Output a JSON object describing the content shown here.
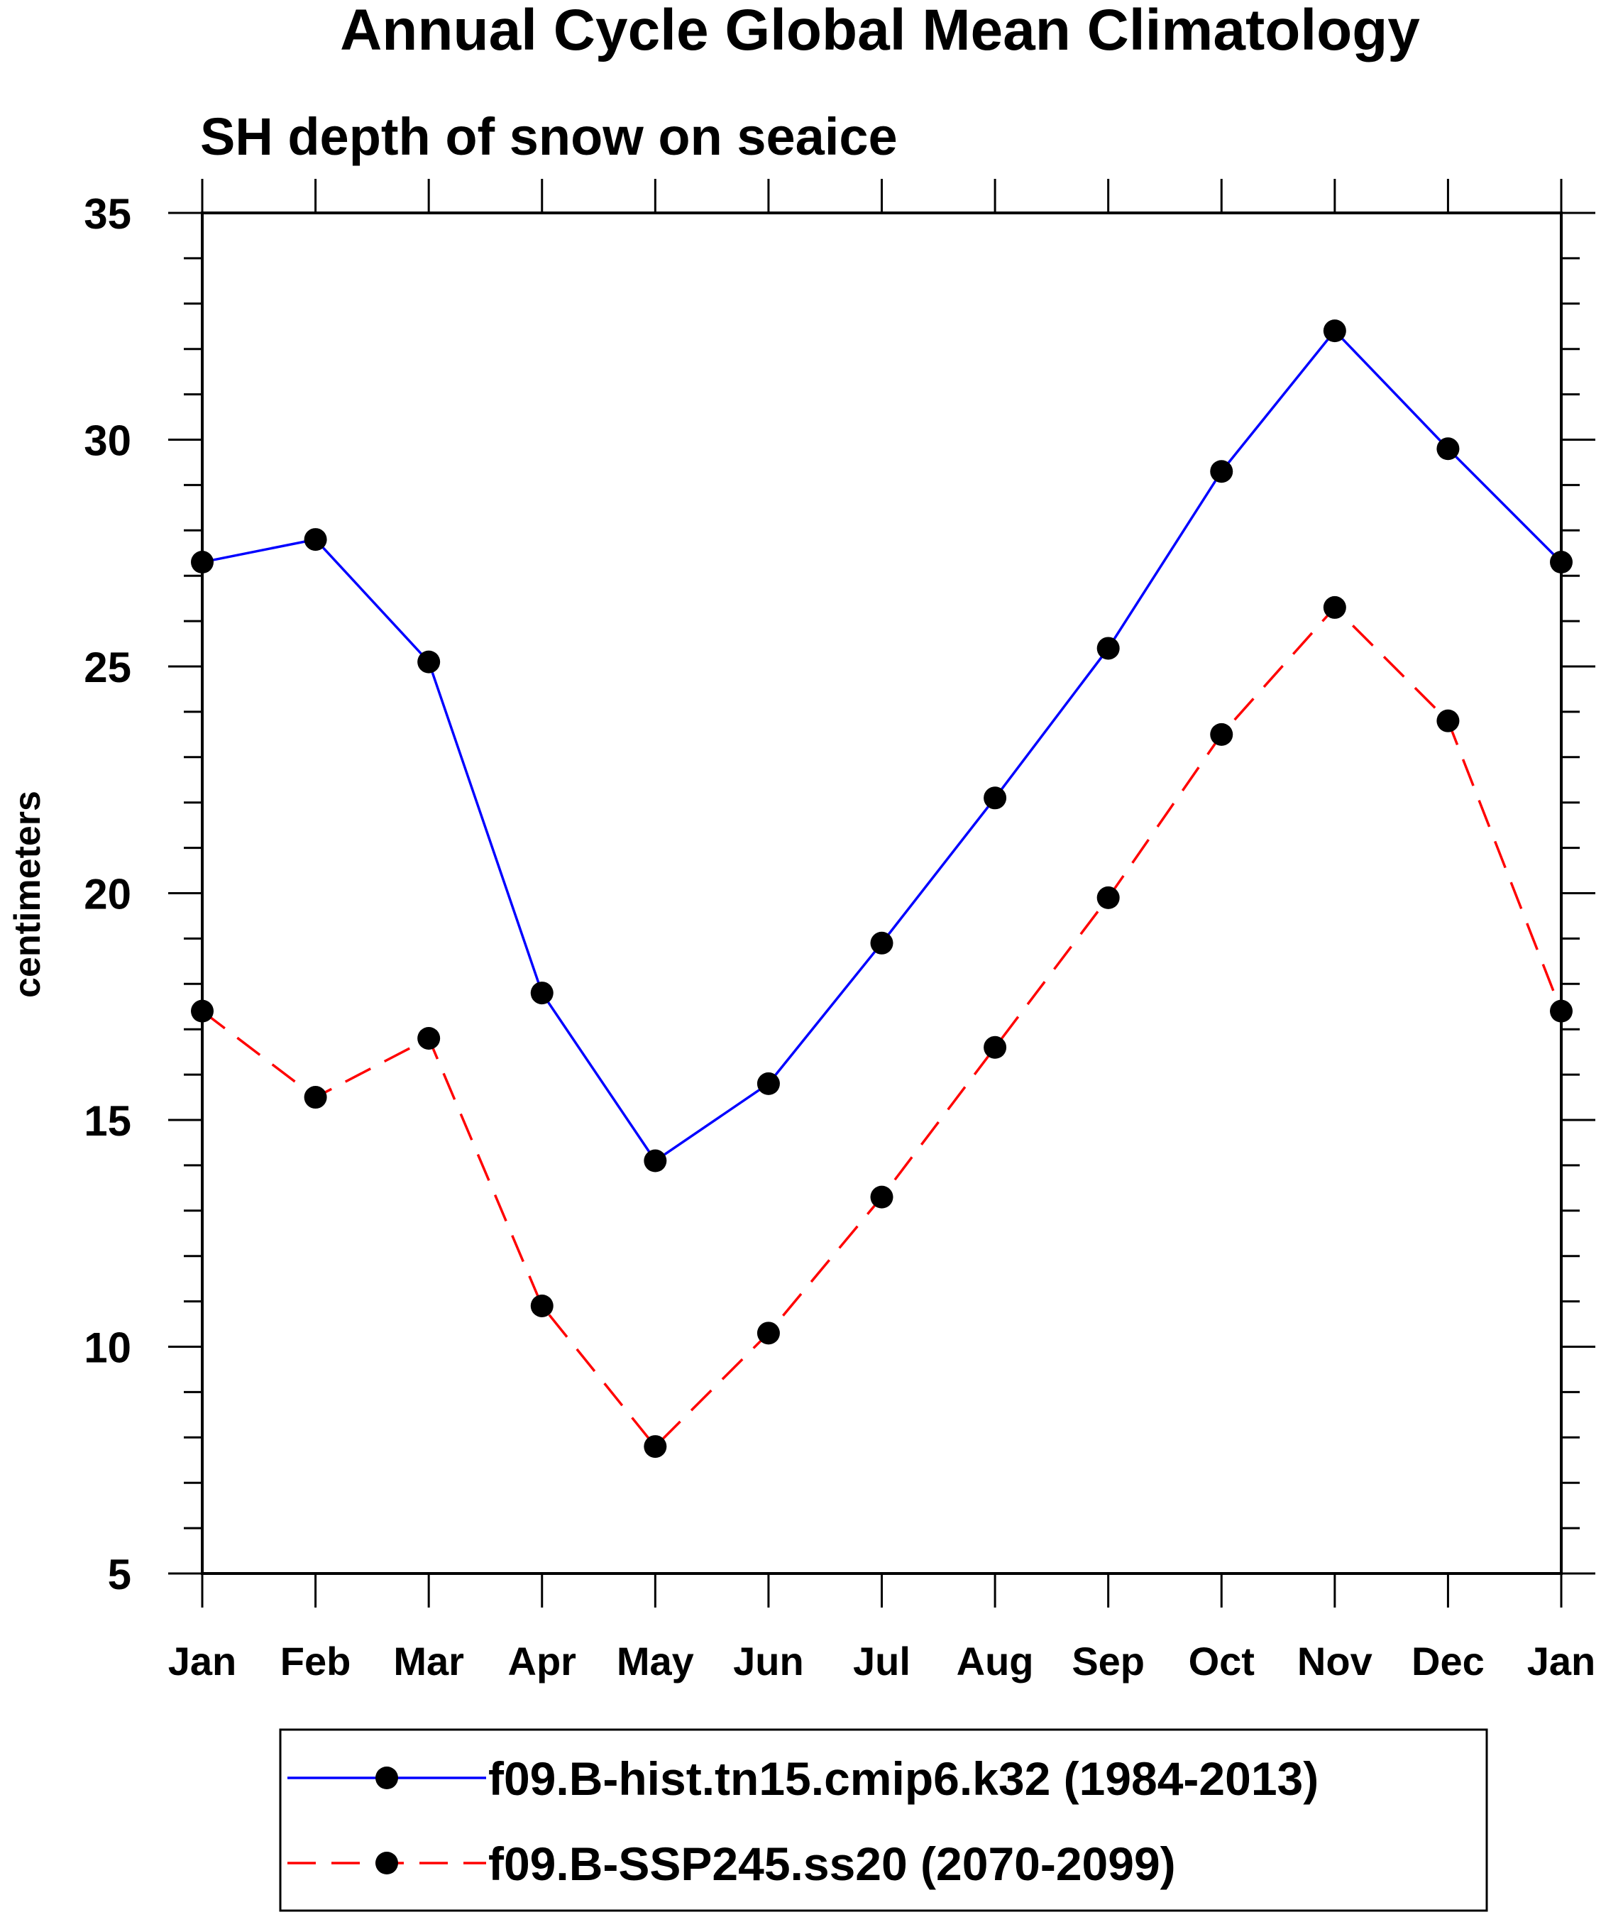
{
  "chart_data": {
    "type": "line",
    "title": "Annual Cycle Global Mean Climatology",
    "subtitle": "SH depth of snow on seaice",
    "xlabel": "",
    "ylabel": "centimeters",
    "categories": [
      "Jan",
      "Feb",
      "Mar",
      "Apr",
      "May",
      "Jun",
      "Jul",
      "Aug",
      "Sep",
      "Oct",
      "Nov",
      "Dec",
      "Jan"
    ],
    "ylim": [
      5,
      35
    ],
    "yticks": [
      5,
      10,
      15,
      20,
      25,
      30,
      35
    ],
    "grid": false,
    "legend_position": "bottom",
    "series": [
      {
        "name": "f09.B-hist.tn15.cmip6.k32 (1984-2013)",
        "color": "#0000ff",
        "line_style": "solid",
        "values": [
          27.3,
          27.8,
          25.1,
          17.8,
          14.1,
          15.8,
          18.9,
          22.1,
          25.4,
          29.3,
          32.4,
          29.8,
          27.3
        ]
      },
      {
        "name": "f09.B-SSP245.ss20 (2070-2099)",
        "color": "#ff0000",
        "line_style": "dashed",
        "values": [
          17.4,
          15.5,
          16.8,
          10.9,
          7.8,
          10.3,
          13.3,
          16.6,
          19.9,
          23.5,
          26.3,
          23.8,
          17.4
        ]
      }
    ]
  }
}
